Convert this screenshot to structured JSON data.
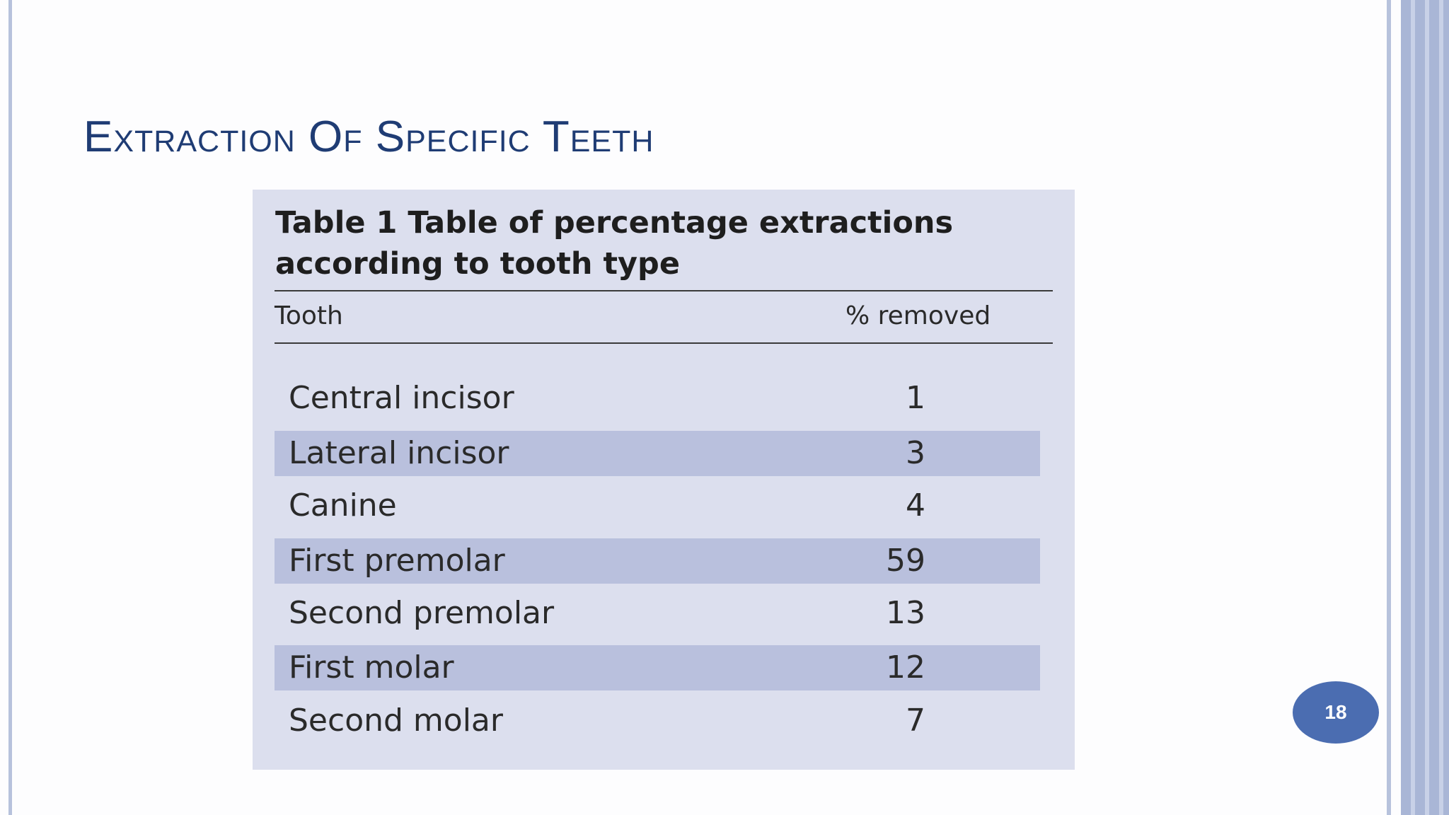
{
  "slide": {
    "title": "Extraction Of Specific Teeth",
    "page_number": "18"
  },
  "table": {
    "caption": "Table 1 Table of percentage extractions according to tooth type",
    "headers": {
      "tooth": "Tooth",
      "percent_removed": "% removed"
    },
    "rows": [
      {
        "tooth": "Central incisor",
        "percent": "1"
      },
      {
        "tooth": "Lateral incisor",
        "percent": "3"
      },
      {
        "tooth": "Canine",
        "percent": "4"
      },
      {
        "tooth": "First premolar",
        "percent": "59"
      },
      {
        "tooth": "Second premolar",
        "percent": "13"
      },
      {
        "tooth": "First molar",
        "percent": "12"
      },
      {
        "tooth": "Second molar",
        "percent": "7"
      }
    ]
  },
  "colors": {
    "title": "#1f3c74",
    "card_background": "#dcdfee",
    "row_shade": "#b9c0dd",
    "badge": "#4b6db1",
    "side_band": "#a9b6d6"
  }
}
